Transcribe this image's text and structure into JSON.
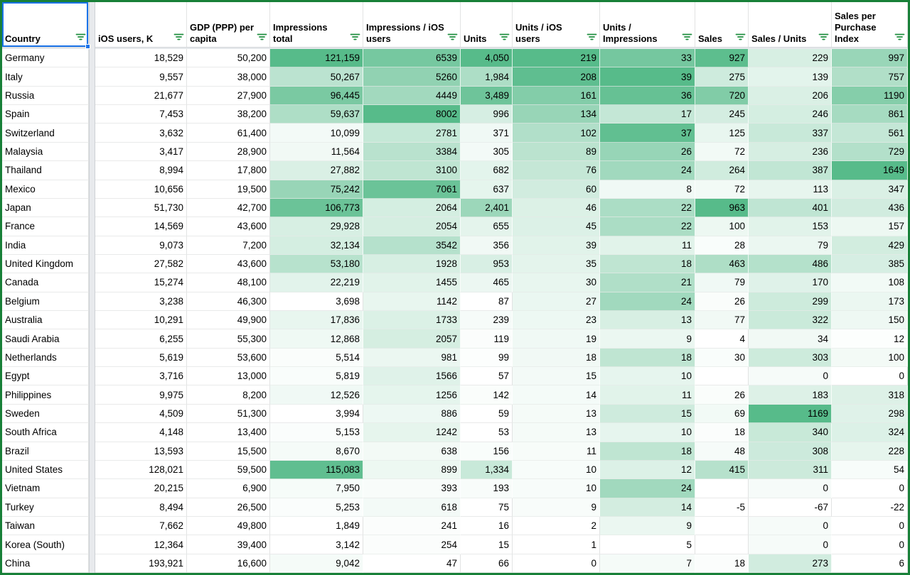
{
  "table": {
    "columns": [
      {
        "label": "Country",
        "align": "left",
        "heatmap": false
      },
      {
        "label": "iOS users, K",
        "align": "right",
        "heatmap": false
      },
      {
        "label": "GDP (PPP) per capita",
        "align": "right",
        "heatmap": false
      },
      {
        "label": "Impressions total",
        "align": "right",
        "heatmap": true
      },
      {
        "label": "Impressions / iOS users",
        "align": "right",
        "heatmap": true
      },
      {
        "label": "Units",
        "align": "right",
        "heatmap": true
      },
      {
        "label": "Units / iOS users",
        "align": "right",
        "heatmap": true
      },
      {
        "label": "Units / Impressions",
        "align": "right",
        "heatmap": true
      },
      {
        "label": "Sales",
        "align": "right",
        "heatmap": true
      },
      {
        "label": "Sales / Units",
        "align": "right",
        "heatmap": true
      },
      {
        "label": "Sales per Purchase Index",
        "align": "right",
        "heatmap": true
      }
    ],
    "rows": [
      [
        "Germany",
        "18,529",
        "50,200",
        "121,159",
        "6539",
        "4,050",
        "219",
        "33",
        "927",
        "229",
        "997"
      ],
      [
        "Italy",
        "9,557",
        "38,000",
        "50,267",
        "5260",
        "1,984",
        "208",
        "39",
        "275",
        "139",
        "757"
      ],
      [
        "Russia",
        "21,677",
        "27,900",
        "96,445",
        "4449",
        "3,489",
        "161",
        "36",
        "720",
        "206",
        "1190"
      ],
      [
        "Spain",
        "7,453",
        "38,200",
        "59,637",
        "8002",
        "996",
        "134",
        "17",
        "245",
        "246",
        "861"
      ],
      [
        "Switzerland",
        "3,632",
        "61,400",
        "10,099",
        "2781",
        "371",
        "102",
        "37",
        "125",
        "337",
        "561"
      ],
      [
        "Malaysia",
        "3,417",
        "28,900",
        "11,564",
        "3384",
        "305",
        "89",
        "26",
        "72",
        "236",
        "729"
      ],
      [
        "Thailand",
        "8,994",
        "17,800",
        "27,882",
        "3100",
        "682",
        "76",
        "24",
        "264",
        "387",
        "1649"
      ],
      [
        "Mexico",
        "10,656",
        "19,500",
        "75,242",
        "7061",
        "637",
        "60",
        "8",
        "72",
        "113",
        "347"
      ],
      [
        "Japan",
        "51,730",
        "42,700",
        "106,773",
        "2064",
        "2,401",
        "46",
        "22",
        "963",
        "401",
        "436"
      ],
      [
        "France",
        "14,569",
        "43,600",
        "29,928",
        "2054",
        "655",
        "45",
        "22",
        "100",
        "153",
        "157"
      ],
      [
        "India",
        "9,073",
        "7,200",
        "32,134",
        "3542",
        "356",
        "39",
        "11",
        "28",
        "79",
        "429"
      ],
      [
        "United Kingdom",
        "27,582",
        "43,600",
        "53,180",
        "1928",
        "953",
        "35",
        "18",
        "463",
        "486",
        "385"
      ],
      [
        "Canada",
        "15,274",
        "48,100",
        "22,219",
        "1455",
        "465",
        "30",
        "21",
        "79",
        "170",
        "108"
      ],
      [
        "Belgium",
        "3,238",
        "46,300",
        "3,698",
        "1142",
        "87",
        "27",
        "24",
        "26",
        "299",
        "173"
      ],
      [
        "Australia",
        "10,291",
        "49,900",
        "17,836",
        "1733",
        "239",
        "23",
        "13",
        "77",
        "322",
        "150"
      ],
      [
        "Saudi Arabia",
        "6,255",
        "55,300",
        "12,868",
        "2057",
        "119",
        "19",
        "9",
        "4",
        "34",
        "12"
      ],
      [
        "Netherlands",
        "5,619",
        "53,600",
        "5,514",
        "981",
        "99",
        "18",
        "18",
        "30",
        "303",
        "100"
      ],
      [
        "Egypt",
        "3,716",
        "13,000",
        "5,819",
        "1566",
        "57",
        "15",
        "10",
        "",
        "0",
        "0"
      ],
      [
        "Philippines",
        "9,975",
        "8,200",
        "12,526",
        "1256",
        "142",
        "14",
        "11",
        "26",
        "183",
        "318"
      ],
      [
        "Sweden",
        "4,509",
        "51,300",
        "3,994",
        "886",
        "59",
        "13",
        "15",
        "69",
        "1169",
        "298"
      ],
      [
        "South Africa",
        "4,148",
        "13,400",
        "5,153",
        "1242",
        "53",
        "13",
        "10",
        "18",
        "340",
        "324"
      ],
      [
        "Brazil",
        "13,593",
        "15,500",
        "8,670",
        "638",
        "156",
        "11",
        "18",
        "48",
        "308",
        "228"
      ],
      [
        "United States",
        "128,021",
        "59,500",
        "115,083",
        "899",
        "1,334",
        "10",
        "12",
        "415",
        "311",
        "54"
      ],
      [
        "Vietnam",
        "20,215",
        "6,900",
        "7,950",
        "393",
        "193",
        "10",
        "24",
        "",
        "0",
        "0"
      ],
      [
        "Turkey",
        "8,494",
        "26,500",
        "5,253",
        "618",
        "75",
        "9",
        "14",
        "-5",
        "-67",
        "-22"
      ],
      [
        "Taiwan",
        "7,662",
        "49,800",
        "1,849",
        "241",
        "16",
        "2",
        "9",
        "",
        "0",
        "0"
      ],
      [
        "Korea (South)",
        "12,364",
        "39,400",
        "3,142",
        "254",
        "15",
        "1",
        "5",
        "",
        "0",
        "0"
      ],
      [
        "China",
        "193,921",
        "16,600",
        "9,042",
        "47",
        "66",
        "0",
        "7",
        "18",
        "273",
        "6"
      ]
    ]
  },
  "selection": {
    "selected_header": "Country"
  },
  "colors": {
    "heatmap_max": "#57bb8a",
    "range_border": "#188038",
    "filter_icon_green": "#1e8e3e",
    "selection_blue": "#1a73e8",
    "gridline": "#e2e3e3",
    "frozen_divider": "#e8eaed"
  }
}
